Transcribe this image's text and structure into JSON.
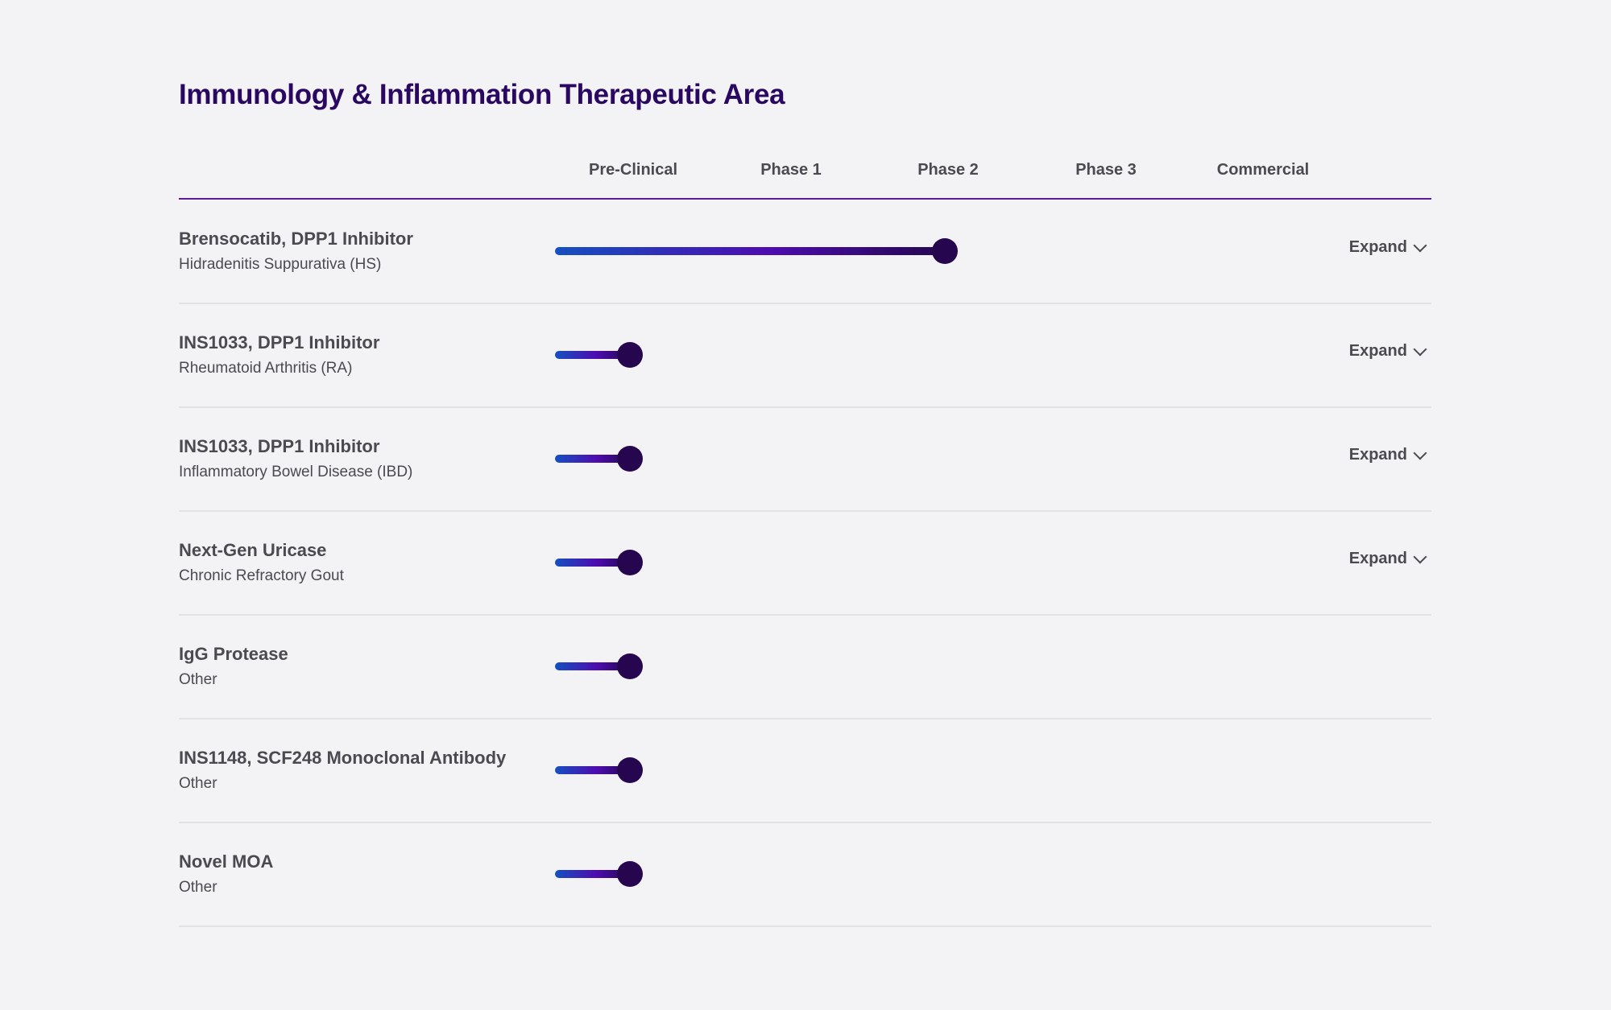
{
  "title": "Immunology & Inflammation Therapeutic Area",
  "phases": [
    "Pre-Clinical",
    "Phase 1",
    "Phase 2",
    "Phase 3",
    "Commercial"
  ],
  "colors": {
    "title": "#2a0862",
    "bar_start": "#1450c0",
    "bar_mid": "#4d0cb0",
    "bar_end": "#24074f"
  },
  "expand_label": "Expand",
  "rows": [
    {
      "name": "Brensocatib, DPP1 Inhibitor",
      "indication": "Hidradenitis Suppurativa (HS)",
      "stage": "Phase 2",
      "expandable": true
    },
    {
      "name": "INS1033, DPP1 Inhibitor",
      "indication": "Rheumatoid Arthritis (RA)",
      "stage": "Pre-Clinical",
      "expandable": true
    },
    {
      "name": "INS1033, DPP1 Inhibitor",
      "indication": "Inflammatory Bowel Disease (IBD)",
      "stage": "Pre-Clinical",
      "expandable": true
    },
    {
      "name": "Next-Gen Uricase",
      "indication": "Chronic Refractory Gout",
      "stage": "Pre-Clinical",
      "expandable": true
    },
    {
      "name": "IgG Protease",
      "indication": "Other",
      "stage": "Pre-Clinical",
      "expandable": false
    },
    {
      "name": "INS1148, SCF248 Monoclonal Antibody",
      "indication": "Other",
      "stage": "Pre-Clinical",
      "expandable": false
    },
    {
      "name": "Novel MOA",
      "indication": "Other",
      "stage": "Pre-Clinical",
      "expandable": false
    }
  ]
}
